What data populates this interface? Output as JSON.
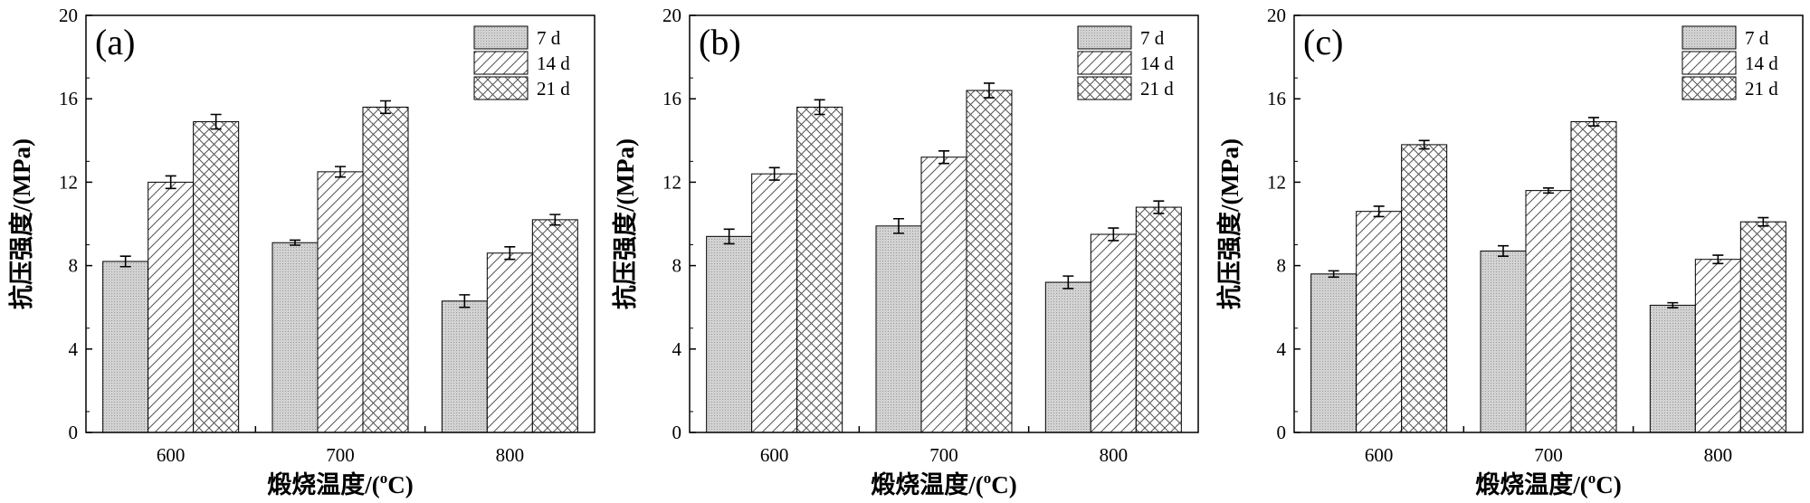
{
  "chart_data": [
    {
      "type": "bar",
      "panel_label": "(a)",
      "categories": [
        "600",
        "700",
        "800"
      ],
      "series": [
        {
          "name": "7 d",
          "values": [
            8.2,
            9.1,
            6.3
          ],
          "errors": [
            0.25,
            0.12,
            0.3
          ]
        },
        {
          "name": "14 d",
          "values": [
            12.0,
            12.5,
            8.6
          ],
          "errors": [
            0.3,
            0.25,
            0.3
          ]
        },
        {
          "name": "21 d",
          "values": [
            14.9,
            15.6,
            10.2
          ],
          "errors": [
            0.35,
            0.3,
            0.25
          ]
        }
      ],
      "xlabel": "煅烧温度/(°C)",
      "xlabel_main": "煅烧温度/(",
      "xlabel_sup": "o",
      "xlabel_end": "C)",
      "ylabel": "抗压强度/(MPa)",
      "ylim": [
        0,
        20
      ],
      "yticks": [
        "0",
        "4",
        "8",
        "12",
        "16",
        "20"
      ],
      "legend_position": "top-right"
    },
    {
      "type": "bar",
      "panel_label": "(b)",
      "categories": [
        "600",
        "700",
        "800"
      ],
      "series": [
        {
          "name": "7 d",
          "values": [
            9.4,
            9.9,
            7.2
          ],
          "errors": [
            0.35,
            0.35,
            0.3
          ]
        },
        {
          "name": "14 d",
          "values": [
            12.4,
            13.2,
            9.5
          ],
          "errors": [
            0.3,
            0.3,
            0.3
          ]
        },
        {
          "name": "21 d",
          "values": [
            15.6,
            16.4,
            10.8
          ],
          "errors": [
            0.35,
            0.35,
            0.3
          ]
        }
      ],
      "xlabel": "煅烧温度/(°C)",
      "xlabel_main": "煅烧温度/(",
      "xlabel_sup": "o",
      "xlabel_end": "C)",
      "ylabel": "抗压强度/(MPa)",
      "ylim": [
        0,
        20
      ],
      "yticks": [
        "0",
        "4",
        "8",
        "12",
        "16",
        "20"
      ],
      "legend_position": "top-right"
    },
    {
      "type": "bar",
      "panel_label": "(c)",
      "categories": [
        "600",
        "700",
        "800"
      ],
      "series": [
        {
          "name": "7 d",
          "values": [
            7.6,
            8.7,
            6.1
          ],
          "errors": [
            0.15,
            0.25,
            0.12
          ]
        },
        {
          "name": "14 d",
          "values": [
            10.6,
            11.6,
            8.3
          ],
          "errors": [
            0.25,
            0.12,
            0.2
          ]
        },
        {
          "name": "21 d",
          "values": [
            13.8,
            14.9,
            10.1
          ],
          "errors": [
            0.2,
            0.2,
            0.2
          ]
        }
      ],
      "xlabel": "煅烧温度/(°C)",
      "xlabel_main": "煅烧温度/(",
      "xlabel_sup": "o",
      "xlabel_end": "C)",
      "ylabel": "抗压强度/(MPa)",
      "ylim": [
        0,
        20
      ],
      "yticks": [
        "0",
        "4",
        "8",
        "12",
        "16",
        "20"
      ],
      "legend_position": "top-right"
    }
  ],
  "colors": {
    "bar_7d_fill": "#cfcfcf",
    "hatch_line": "#555555",
    "axis": "#000000",
    "background": "#ffffff"
  }
}
